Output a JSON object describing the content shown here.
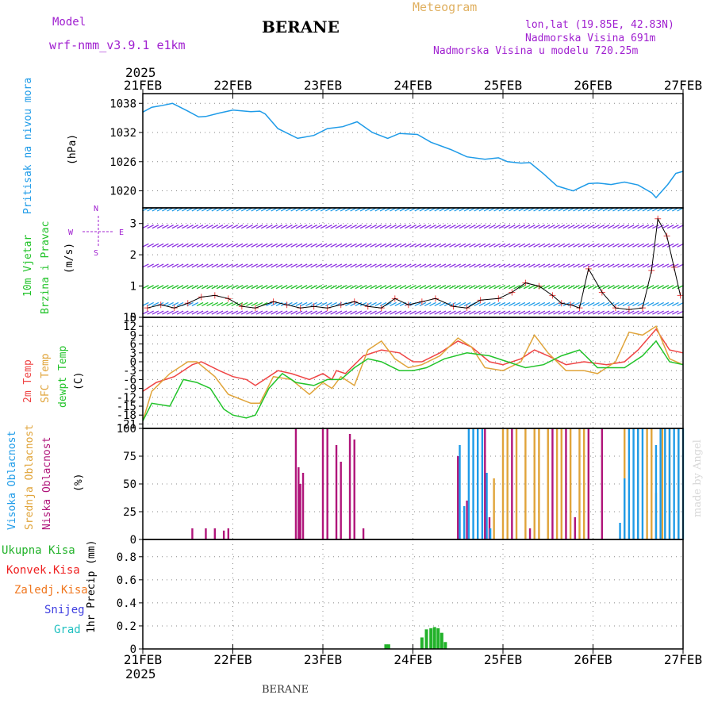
{
  "header": {
    "model_label": "Model",
    "model_name": "wrf-nmm_v3.9.1 e1km",
    "title": "BERANE",
    "meteogram_label": "Meteogram",
    "lonlat": "lon,lat (19.85E, 42.83N)",
    "elevation": "Nadmorska Visina 691m",
    "model_elevation": "Nadmorska Visina u modelu 720.25m"
  },
  "footer": {
    "station": "BERANE",
    "credit": "made by Angel"
  },
  "colors": {
    "pressure": "#1e9be8",
    "t2m": "#ef4444",
    "tsfc": "#e0a43a",
    "dewpt": "#22c32a",
    "high_cloud": "#1e9be8",
    "mid_cloud": "#e0a43a",
    "low_cloud": "#b0157a",
    "precip_total": "#22b22a",
    "precip_conv": "#ef2020",
    "precip_frz": "#f07820",
    "snow": "#4040e0",
    "hail": "#20c0c0",
    "purple_text": "#a020d0",
    "orange_text": "#e0b060"
  },
  "chart_data": [
    {
      "type": "line",
      "panel": "pressure",
      "year_label": "2025",
      "day_labels": [
        "21FEB",
        "22FEB",
        "23FEB",
        "24FEB",
        "25FEB",
        "26FEB",
        "27FEB"
      ],
      "ylabel_lines": [
        "Pritisak na nivou mora",
        "(hPa)"
      ],
      "yticks": [
        1020,
        1026,
        1032,
        1038
      ],
      "ylim": [
        1016.5,
        1040
      ],
      "series": [
        {
          "key": "pressure",
          "x": [
            0,
            0.1,
            0.2,
            0.33,
            0.5,
            0.62,
            0.7,
            0.85,
            1.0,
            1.2,
            1.3,
            1.36,
            1.5,
            1.72,
            1.9,
            2.05,
            2.22,
            2.38,
            2.55,
            2.72,
            2.85,
            3.05,
            3.2,
            3.42,
            3.6,
            3.8,
            3.95,
            4.05,
            4.2,
            4.3,
            4.45,
            4.6,
            4.78,
            4.95,
            5.05,
            5.2,
            5.35,
            5.5,
            5.65,
            5.7,
            5.83,
            5.92,
            6.0
          ],
          "y": [
            1036.2,
            1037.2,
            1037.5,
            1038.0,
            1036.4,
            1035.2,
            1035.3,
            1036.0,
            1036.6,
            1036.3,
            1036.4,
            1035.8,
            1032.8,
            1030.8,
            1031.4,
            1032.8,
            1033.2,
            1034.2,
            1032.0,
            1030.8,
            1031.8,
            1031.6,
            1030.0,
            1028.5,
            1027.0,
            1026.5,
            1026.8,
            1026.0,
            1025.7,
            1025.8,
            1023.5,
            1021.0,
            1020.0,
            1021.5,
            1021.6,
            1021.3,
            1021.8,
            1021.2,
            1019.6,
            1018.6,
            1021.3,
            1023.6,
            1024.0
          ]
        }
      ]
    },
    {
      "type": "scatter",
      "panel": "wind",
      "ylabel_lines": [
        "10m Vjetar",
        "Brzina i Pravac",
        "(m/s)"
      ],
      "compass": {
        "n": "N",
        "s": "S",
        "w": "W",
        "e": "E"
      },
      "yticks": [
        0,
        1,
        2,
        3
      ],
      "ylim": [
        0,
        3.5
      ],
      "barb_rows": [
        0.15,
        0.42,
        0.97,
        1.65,
        2.3,
        2.9,
        3.45
      ],
      "speed_markers": {
        "x": [
          0.05,
          0.2,
          0.35,
          0.5,
          0.65,
          0.8,
          0.95,
          1.1,
          1.25,
          1.45,
          1.6,
          1.75,
          1.9,
          2.05,
          2.2,
          2.35,
          2.5,
          2.65,
          2.8,
          2.95,
          3.1,
          3.25,
          3.45,
          3.6,
          3.75,
          3.95,
          4.1,
          4.25,
          4.4,
          4.55,
          4.65,
          4.75,
          4.85,
          4.95,
          5.1,
          5.25,
          5.4,
          5.55,
          5.65,
          5.72,
          5.82,
          5.9,
          5.97
        ],
        "y": [
          0.3,
          0.4,
          0.3,
          0.45,
          0.65,
          0.7,
          0.6,
          0.35,
          0.3,
          0.5,
          0.4,
          0.3,
          0.35,
          0.3,
          0.4,
          0.5,
          0.35,
          0.3,
          0.6,
          0.4,
          0.5,
          0.6,
          0.35,
          0.3,
          0.55,
          0.6,
          0.8,
          1.1,
          1.0,
          0.7,
          0.45,
          0.4,
          0.3,
          1.55,
          0.8,
          0.3,
          0.25,
          0.3,
          1.5,
          3.15,
          2.6,
          1.6,
          0.7
        ]
      }
    },
    {
      "type": "line",
      "panel": "temperature",
      "ylabel_lines": [
        "2m Temp",
        "SFC Temp",
        "dewpt Temp",
        "(C)"
      ],
      "yticks": [
        -21,
        -18,
        -15,
        -12,
        -9,
        -6,
        -3,
        0,
        3,
        6,
        9,
        12,
        15
      ],
      "ylim": [
        -22.5,
        15
      ],
      "series": [
        {
          "key": "t2m",
          "x": [
            0,
            0.15,
            0.35,
            0.55,
            0.65,
            0.85,
            1.0,
            1.15,
            1.25,
            1.5,
            1.65,
            1.85,
            2.0,
            2.1,
            2.15,
            2.25,
            2.45,
            2.65,
            2.85,
            3.0,
            3.1,
            3.3,
            3.5,
            3.65,
            3.85,
            4.0,
            4.2,
            4.35,
            4.5,
            4.7,
            4.9,
            5.15,
            5.35,
            5.5,
            5.7,
            5.85,
            6.0
          ],
          "y": [
            -10,
            -7,
            -5,
            -1,
            0,
            -3,
            -5,
            -6,
            -8,
            -3,
            -4,
            -6,
            -4,
            -6,
            -3,
            -4,
            2,
            4,
            3,
            0,
            0,
            3,
            7,
            5,
            0,
            -1,
            1,
            4,
            2,
            -1,
            0,
            -1,
            0,
            4,
            11,
            4,
            3
          ]
        },
        {
          "key": "tsfc",
          "x": [
            0,
            0.1,
            0.3,
            0.5,
            0.6,
            0.8,
            0.95,
            1.2,
            1.3,
            1.45,
            1.65,
            1.85,
            2.0,
            2.1,
            2.2,
            2.35,
            2.5,
            2.65,
            2.8,
            2.95,
            3.1,
            3.3,
            3.5,
            3.65,
            3.8,
            4.0,
            4.2,
            4.35,
            4.5,
            4.7,
            4.9,
            5.05,
            5.25,
            5.4,
            5.55,
            5.7,
            5.85,
            6.0
          ],
          "y": [
            -20,
            -10,
            -4,
            0,
            0,
            -5,
            -11,
            -14,
            -14,
            -5,
            -6,
            -11,
            -7,
            -9,
            -5,
            -8,
            4,
            7,
            1,
            -2,
            -1,
            2,
            8,
            5,
            -2,
            -3,
            0,
            9,
            3,
            -3,
            -3,
            -4,
            0,
            10,
            9,
            12,
            1,
            -1
          ]
        },
        {
          "key": "dewpt",
          "x": [
            0,
            0.1,
            0.3,
            0.45,
            0.6,
            0.75,
            0.9,
            1.0,
            1.15,
            1.25,
            1.4,
            1.55,
            1.7,
            1.9,
            2.05,
            2.2,
            2.35,
            2.5,
            2.65,
            2.85,
            3.0,
            3.15,
            3.35,
            3.6,
            3.85,
            4.05,
            4.25,
            4.45,
            4.65,
            4.85,
            5.05,
            5.2,
            5.35,
            5.55,
            5.7,
            5.85,
            6.0
          ],
          "y": [
            -20,
            -14,
            -15,
            -6,
            -7,
            -9,
            -16,
            -18,
            -19,
            -18,
            -9,
            -4,
            -7,
            -8,
            -6,
            -6,
            -2,
            1,
            0,
            -3,
            -3,
            -2,
            1,
            3,
            2,
            0,
            -2,
            -1,
            2,
            4,
            -2,
            -2,
            -2,
            2,
            7,
            0,
            -1
          ]
        }
      ]
    },
    {
      "type": "bar",
      "panel": "clouds",
      "ylabel_lines": [
        "Visoka Oblacnost",
        "Srednja Oblacnost",
        "Niska Oblacnost",
        "(%)"
      ],
      "yticks": [
        0,
        25,
        50,
        75,
        100
      ],
      "ylim": [
        0,
        100
      ],
      "series": [
        {
          "key": "low_cloud",
          "x": [
            0.55,
            0.7,
            0.8,
            0.9,
            0.95,
            1.7,
            1.73,
            1.75,
            1.78,
            2.0,
            2.05,
            2.15,
            2.2,
            2.3,
            2.35,
            2.45,
            3.5,
            3.6,
            3.8,
            3.85,
            4.1,
            4.3,
            4.55,
            4.7,
            4.8,
            4.95,
            5.1
          ],
          "y": [
            10,
            10,
            10,
            8,
            10,
            100,
            65,
            50,
            60,
            100,
            100,
            85,
            70,
            95,
            90,
            10,
            75,
            35,
            100,
            20,
            100,
            10,
            100,
            100,
            20,
            100,
            100
          ]
        },
        {
          "key": "mid_cloud",
          "x": [
            3.9,
            4.0,
            4.05,
            4.15,
            4.25,
            4.35,
            4.4,
            4.5,
            4.6,
            4.65,
            4.75,
            4.85,
            4.9,
            5.35,
            5.5,
            5.6,
            5.65,
            5.7,
            5.77,
            5.85,
            5.95
          ],
          "y": [
            55,
            100,
            100,
            100,
            100,
            100,
            100,
            100,
            100,
            100,
            100,
            100,
            100,
            100,
            100,
            100,
            100,
            42,
            100,
            100,
            100
          ]
        },
        {
          "key": "high_cloud",
          "x": [
            3.52,
            3.57,
            3.62,
            3.67,
            3.72,
            3.77,
            3.82,
            3.86,
            5.3,
            5.35,
            5.4,
            5.45,
            5.5,
            5.55,
            5.7,
            5.75,
            5.8,
            5.85,
            5.9,
            5.95,
            6.0
          ],
          "y": [
            85,
            30,
            100,
            100,
            100,
            100,
            60,
            10,
            15,
            55,
            100,
            100,
            100,
            100,
            85,
            100,
            100,
            100,
            100,
            100,
            100
          ]
        }
      ]
    },
    {
      "type": "bar",
      "panel": "precipitation",
      "ylabel_lines": [
        "1hr Precip (mm)"
      ],
      "legend": [
        "Ukupna Kisa",
        "Konvek.Kisa",
        "Zaledj.Kisa",
        "Snijeg",
        "Grad"
      ],
      "yticks": [
        0,
        0.2,
        0.4,
        0.6,
        0.8
      ],
      "ylim": [
        0,
        0.95
      ],
      "series": [
        {
          "key": "precip_total",
          "x": [
            2.7,
            2.73,
            3.1,
            3.15,
            3.2,
            3.24,
            3.28,
            3.32,
            3.36
          ],
          "y": [
            0.04,
            0.04,
            0.1,
            0.17,
            0.18,
            0.19,
            0.18,
            0.14,
            0.06
          ]
        }
      ]
    }
  ]
}
